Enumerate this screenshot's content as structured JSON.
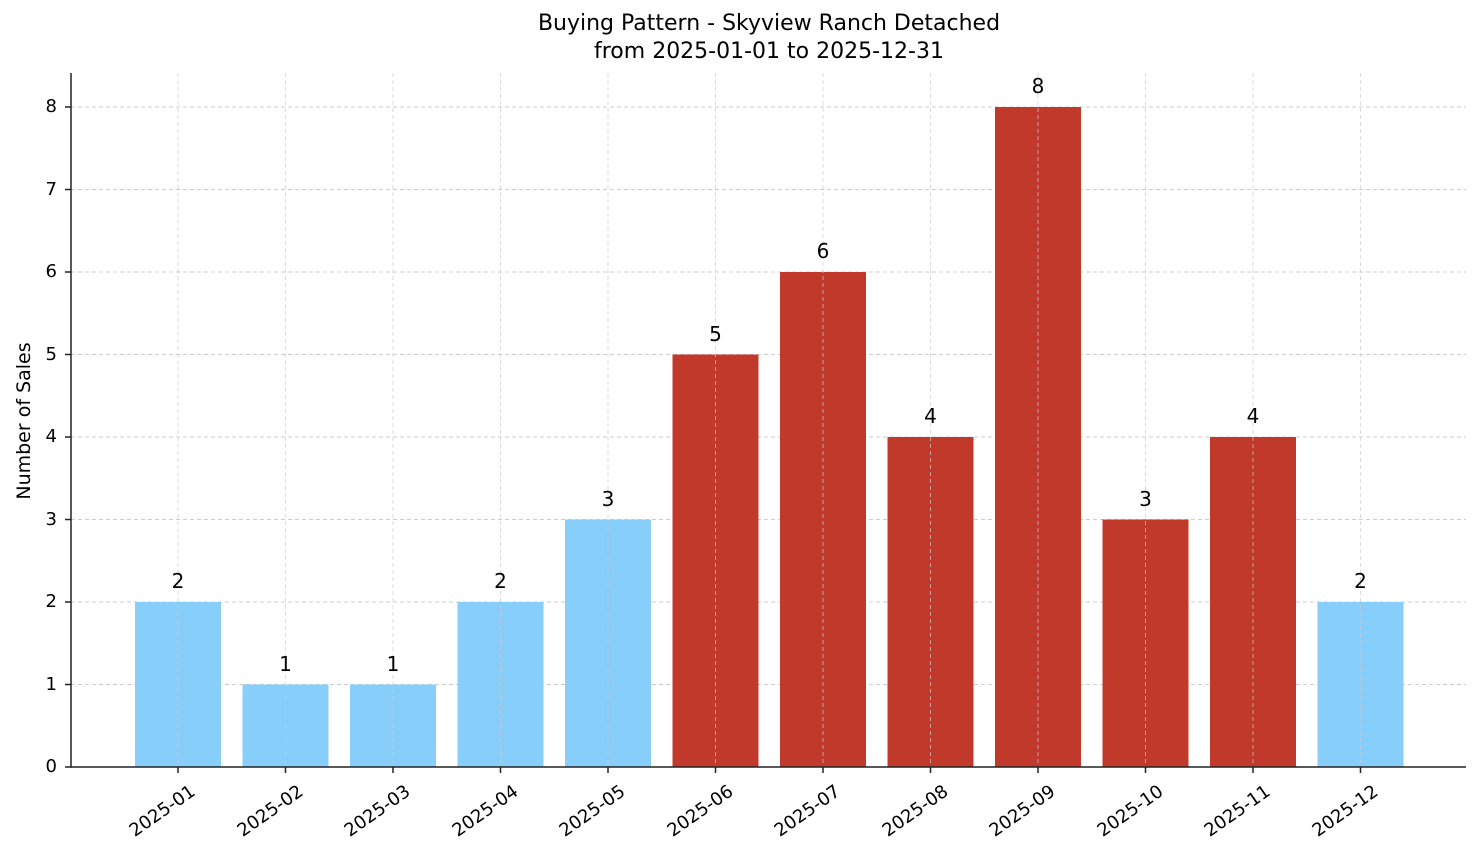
{
  "chart_data": {
    "type": "bar",
    "title": "Buying Pattern - Skyview Ranch Detached",
    "subtitle": "from 2025-01-01 to 2025-12-31",
    "xlabel": "",
    "ylabel": "Number of Sales",
    "categories": [
      "2025-01",
      "2025-02",
      "2025-03",
      "2025-04",
      "2025-05",
      "2025-06",
      "2025-07",
      "2025-08",
      "2025-09",
      "2025-10",
      "2025-11",
      "2025-12"
    ],
    "values": [
      2,
      1,
      1,
      2,
      3,
      5,
      6,
      4,
      8,
      3,
      4,
      2
    ],
    "bar_colors": [
      "#87cefa",
      "#87cefa",
      "#87cefa",
      "#87cefa",
      "#87cefa",
      "#c0392b",
      "#c0392b",
      "#c0392b",
      "#c0392b",
      "#c0392b",
      "#c0392b",
      "#87cefa"
    ],
    "highlight_color": "#c0392b",
    "base_color": "#87cefa",
    "ylim": [
      0,
      8.4
    ],
    "yticks": [
      0,
      1,
      2,
      3,
      4,
      5,
      6,
      7,
      8
    ],
    "grid": true,
    "legend": null,
    "data_labels": true
  }
}
